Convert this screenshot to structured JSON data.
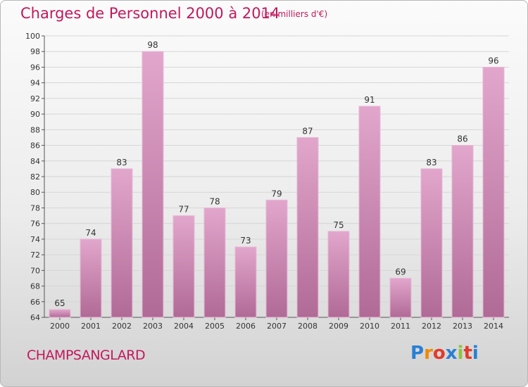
{
  "title": "Charges de Personnel 2000 à 2014",
  "subtitle": "(en milliers d'€)",
  "commune": "CHAMPSANGLARD",
  "logo": {
    "letters": [
      "P",
      "r",
      "o",
      "x",
      "i",
      "t",
      "i"
    ],
    "colors": [
      "#2a7fd4",
      "#f08a00",
      "#e23a2a",
      "#2a7fd4",
      "#8cc43c",
      "#e23a2a",
      "#2a7fd4"
    ]
  },
  "colors": {
    "bar_top": "#e2a6cc",
    "bar_bottom": "#b06a96",
    "accent": "#c2185b"
  },
  "chart_data": {
    "type": "bar",
    "title": "Charges de Personnel 2000 à 2014",
    "subtitle": "(en milliers d'€)",
    "categories": [
      "2000",
      "2001",
      "2002",
      "2003",
      "2004",
      "2005",
      "2006",
      "2007",
      "2008",
      "2009",
      "2010",
      "2011",
      "2012",
      "2013",
      "2014"
    ],
    "values": [
      65,
      74,
      83,
      98,
      77,
      78,
      73,
      79,
      87,
      75,
      91,
      69,
      83,
      86,
      96
    ],
    "ylim": [
      64,
      100
    ],
    "yticks": [
      64,
      66,
      68,
      70,
      72,
      74,
      76,
      78,
      80,
      82,
      84,
      86,
      88,
      90,
      92,
      94,
      96,
      98,
      100
    ],
    "grid": true,
    "xlabel": "",
    "ylabel": ""
  }
}
